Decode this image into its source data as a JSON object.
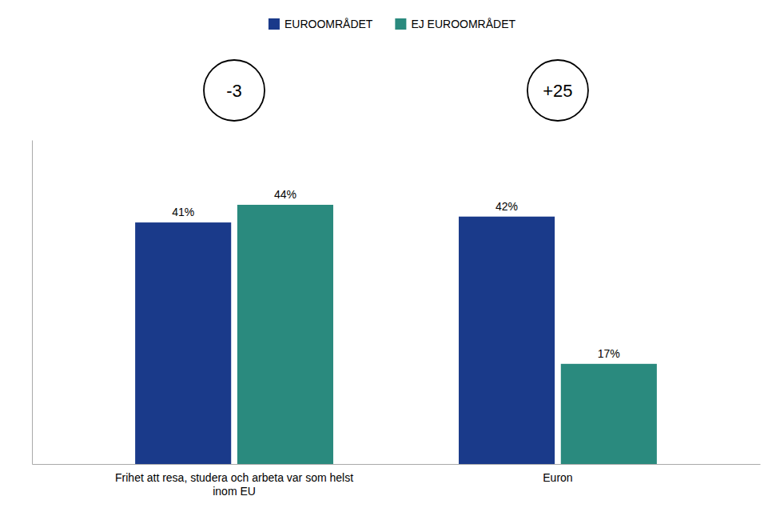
{
  "chart_data": {
    "type": "bar",
    "categories": [
      "Frihet att resa, studera och arbeta var som helst\ninom EU",
      "Euron"
    ],
    "series": [
      {
        "name": "EUROOMRÅDET",
        "color": "#1a3a8a",
        "values": [
          41,
          42
        ],
        "value_labels": [
          "41%",
          "42%"
        ]
      },
      {
        "name": "EJ EUROOMRÅDET",
        "color": "#2a8a7e",
        "values": [
          44,
          17
        ],
        "value_labels": [
          "44%",
          "17%"
        ]
      }
    ],
    "annotations": [
      "-3",
      "+25"
    ],
    "ylim": [
      0,
      55
    ],
    "grid": false,
    "legend": "top",
    "data_labels": true,
    "tick_labels": "x"
  }
}
